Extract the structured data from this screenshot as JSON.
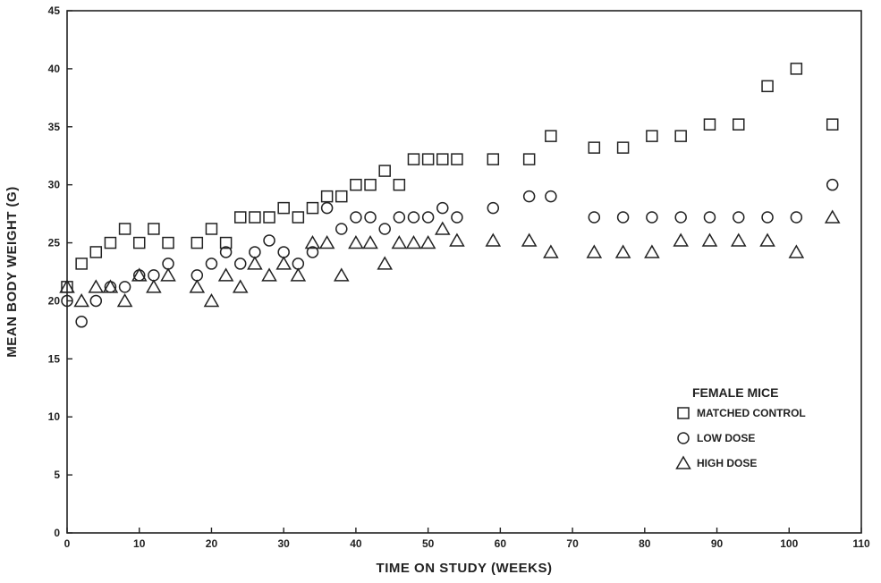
{
  "chart_data": {
    "type": "scatter",
    "title": "",
    "xlabel": "TIME ON STUDY (WEEKS)",
    "ylabel": "MEAN BODY WEIGHT (G)",
    "xlim": [
      0,
      110
    ],
    "ylim": [
      0,
      45
    ],
    "xticks": [
      "0",
      "10",
      "20",
      "30",
      "40",
      "50",
      "60",
      "70",
      "80",
      "90",
      "100",
      "110"
    ],
    "yticks": [
      "0",
      "5",
      "10",
      "15",
      "20",
      "25",
      "30",
      "35",
      "40",
      "45"
    ],
    "grid": false,
    "legend_title": "FEMALE MICE",
    "legend_position": "lower-right",
    "series": [
      {
        "name": "MATCHED CONTROL",
        "marker": "square",
        "x": [
          0,
          2,
          4,
          6,
          8,
          10,
          12,
          14,
          18,
          20,
          22,
          24,
          26,
          28,
          30,
          32,
          34,
          36,
          38,
          40,
          42,
          44,
          46,
          48,
          50,
          52,
          54,
          59,
          64,
          67,
          73,
          77,
          81,
          85,
          89,
          93,
          97,
          101,
          106
        ],
        "y": [
          21.2,
          23.2,
          24.2,
          25,
          26.2,
          25,
          26.2,
          25,
          25,
          26.2,
          25,
          27.2,
          27.2,
          27.2,
          28,
          27.2,
          28,
          29,
          29,
          30,
          30,
          31.2,
          30,
          32.2,
          32.2,
          32.2,
          32.2,
          32.2,
          32.2,
          34.2,
          33.2,
          33.2,
          34.2,
          34.2,
          35.2,
          35.2,
          38.5,
          40,
          35.2
        ]
      },
      {
        "name": "LOW DOSE",
        "marker": "circle",
        "x": [
          0,
          2,
          4,
          6,
          8,
          10,
          12,
          14,
          18,
          20,
          22,
          24,
          26,
          28,
          30,
          32,
          34,
          36,
          38,
          40,
          42,
          44,
          46,
          48,
          50,
          52,
          54,
          59,
          64,
          67,
          73,
          77,
          81,
          85,
          89,
          93,
          97,
          101,
          106
        ],
        "y": [
          20,
          18.2,
          20,
          21.2,
          21.2,
          22.2,
          22.2,
          23.2,
          22.2,
          23.2,
          24.2,
          23.2,
          24.2,
          25.2,
          24.2,
          23.2,
          24.2,
          28,
          26.2,
          27.2,
          27.2,
          26.2,
          27.2,
          27.2,
          27.2,
          28,
          27.2,
          28,
          29,
          29,
          27.2,
          27.2,
          27.2,
          27.2,
          27.2,
          27.2,
          27.2,
          27.2,
          30
        ]
      },
      {
        "name": "HIGH DOSE",
        "marker": "triangle",
        "x": [
          0,
          2,
          4,
          6,
          8,
          10,
          12,
          14,
          18,
          20,
          22,
          24,
          26,
          28,
          30,
          32,
          34,
          36,
          38,
          40,
          42,
          44,
          46,
          48,
          50,
          52,
          54,
          59,
          64,
          67,
          73,
          77,
          81,
          85,
          89,
          93,
          97,
          101,
          106
        ],
        "y": [
          21.2,
          20,
          21.2,
          21.2,
          20,
          22.2,
          21.2,
          22.2,
          21.2,
          20,
          22.2,
          21.2,
          23.2,
          22.2,
          23.2,
          22.2,
          25,
          25,
          22.2,
          25,
          25,
          23.2,
          25,
          25,
          25,
          26.2,
          25.2,
          25.2,
          25.2,
          24.2,
          24.2,
          24.2,
          24.2,
          25.2,
          25.2,
          25.2,
          25.2,
          24.2,
          27.2
        ]
      }
    ]
  }
}
